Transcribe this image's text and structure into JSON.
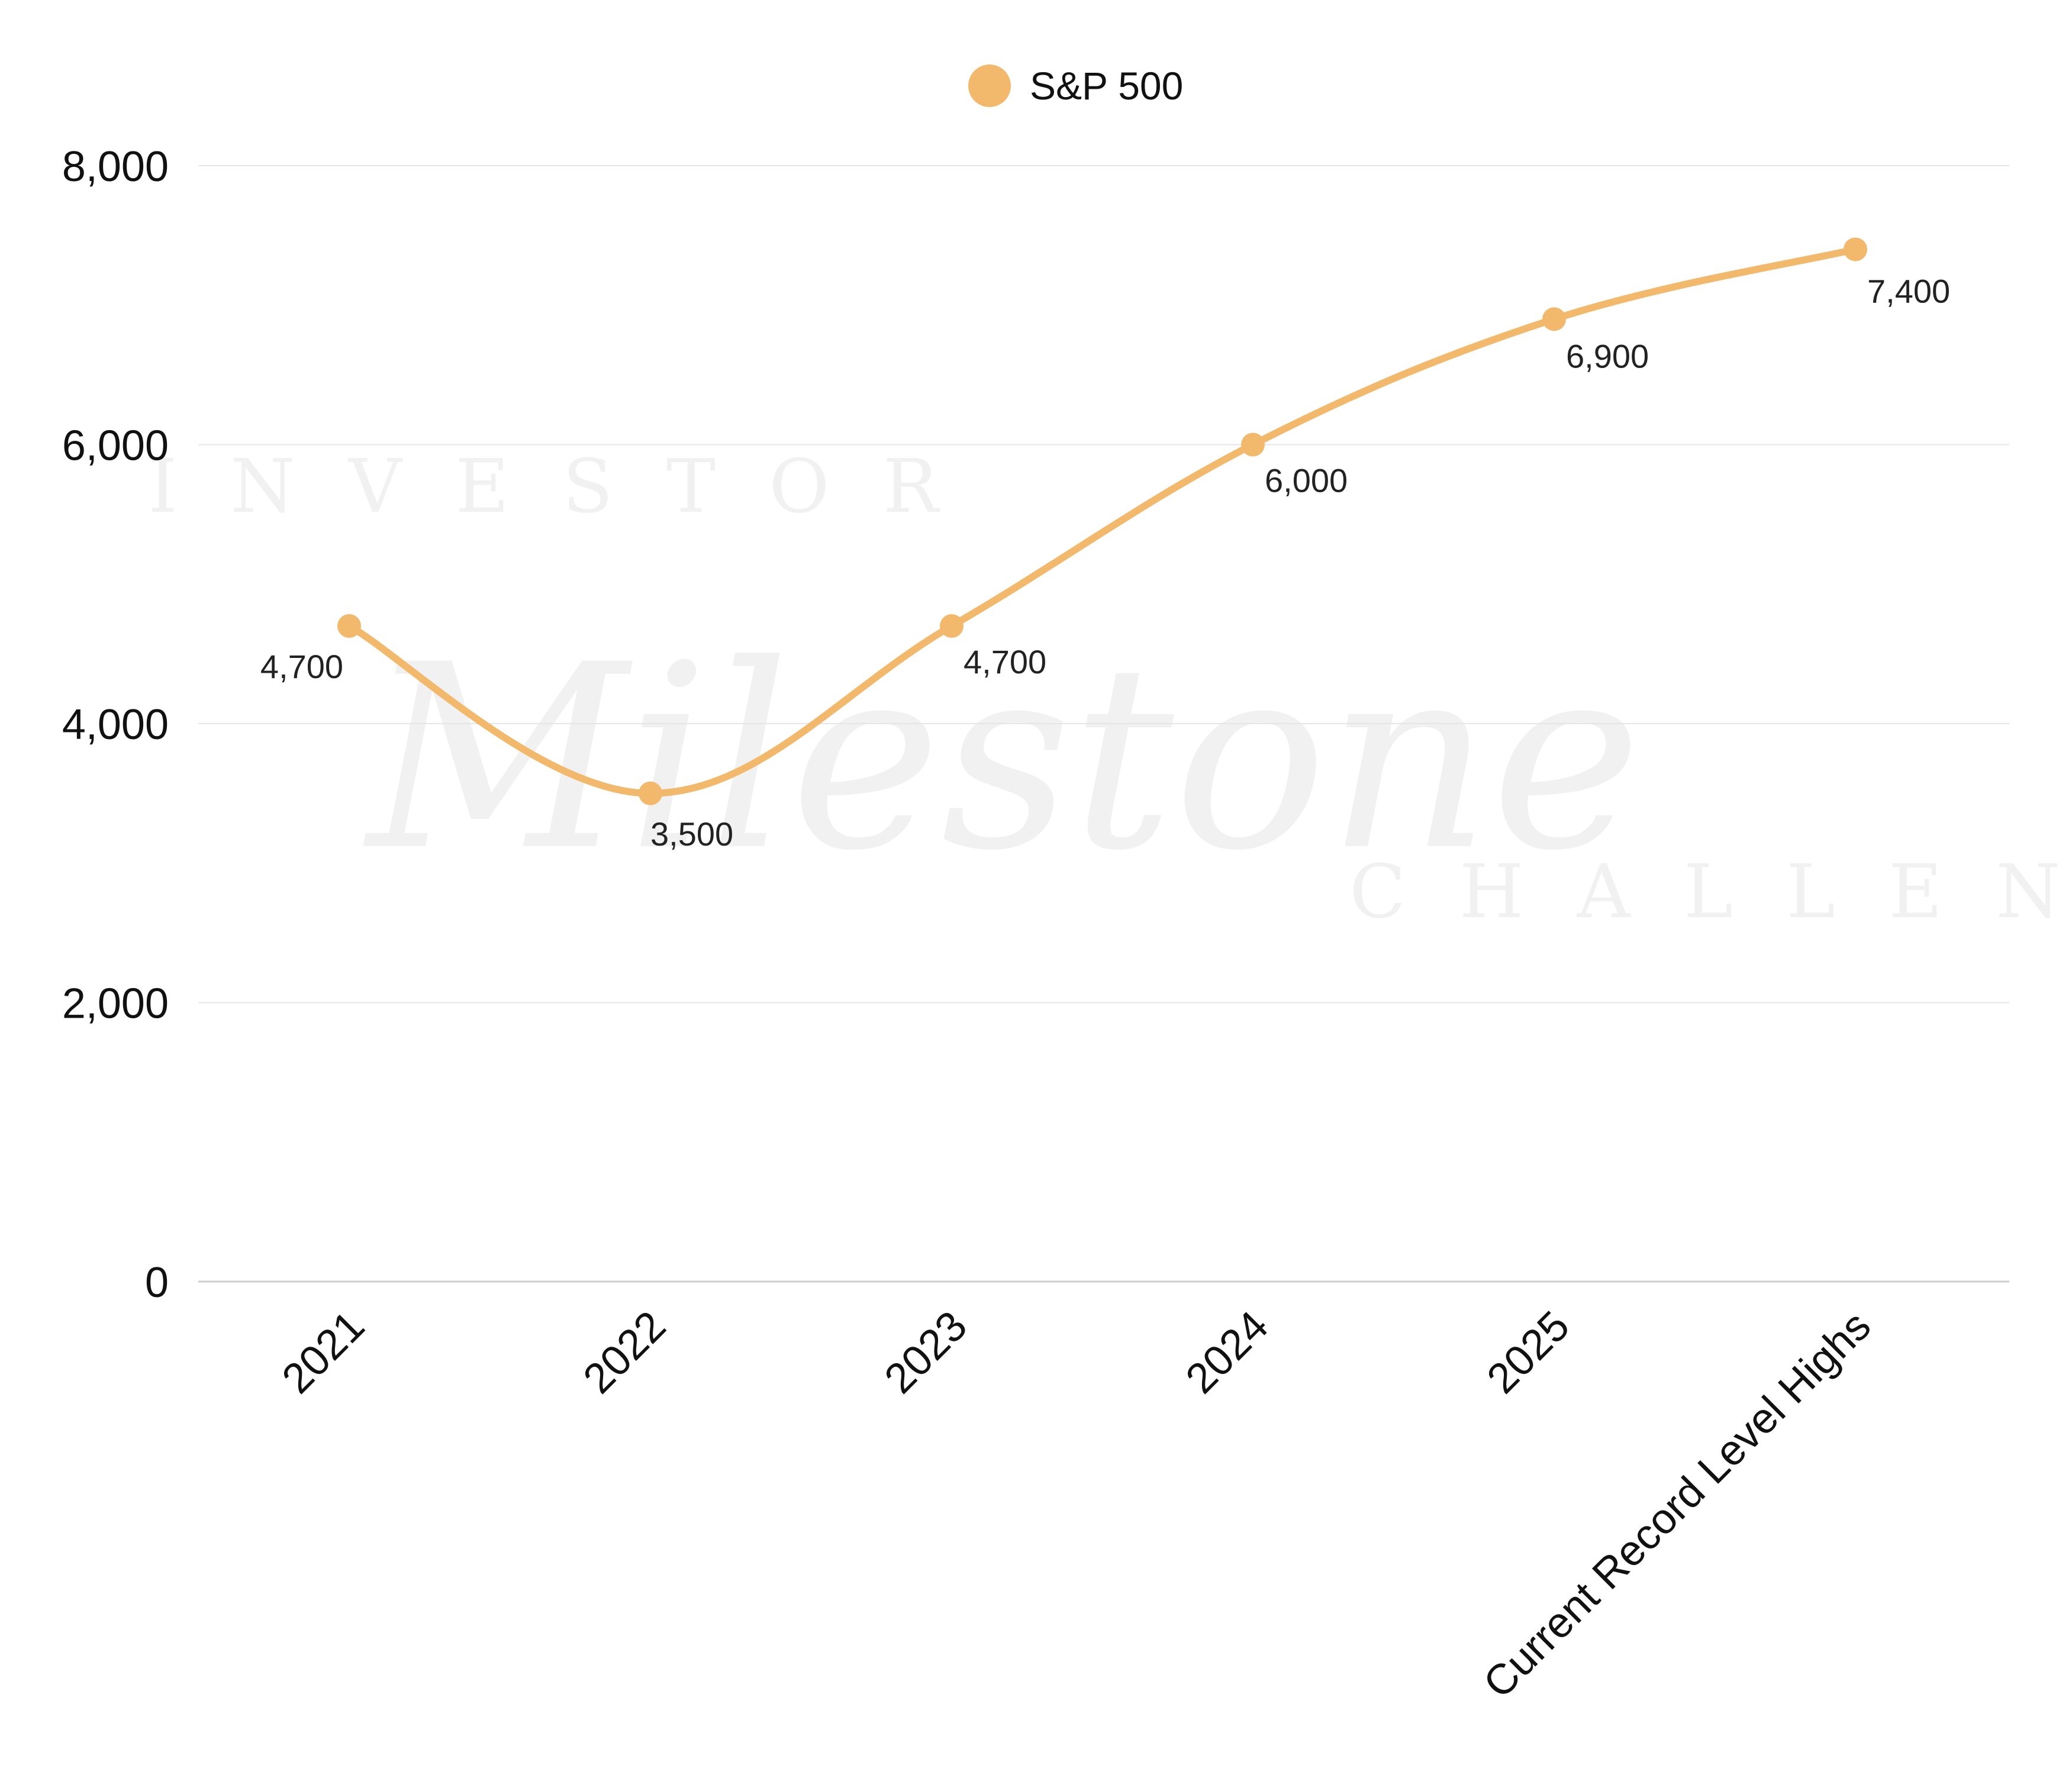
{
  "watermark": {
    "top_word": "INVESTOR",
    "script_word": "Milestone",
    "bottom_word": "CHALLENGE"
  },
  "colors": {
    "series": "#F2B86C",
    "grid": "#E6E6E6",
    "axis": "#CFCFCF"
  },
  "chart_data": {
    "type": "line",
    "title": "",
    "xlabel": "",
    "ylabel": "",
    "categories": [
      "2021",
      "2022",
      "2023",
      "2024",
      "2025",
      "Current Record Level Highs"
    ],
    "series": [
      {
        "name": "S&P 500",
        "values": [
          4700,
          3500,
          4700,
          6000,
          6900,
          7400
        ],
        "labels": [
          "4,700",
          "3,500",
          "4,700",
          "6,000",
          "6,900",
          "7,400"
        ]
      }
    ],
    "ylim": [
      0,
      8000
    ],
    "yticks": [
      0,
      2000,
      4000,
      6000,
      8000
    ],
    "ytick_labels": [
      "0",
      "2,000",
      "4,000",
      "6,000",
      "8,000"
    ],
    "grid": true,
    "legend_position": "top-center",
    "smooth": true
  }
}
